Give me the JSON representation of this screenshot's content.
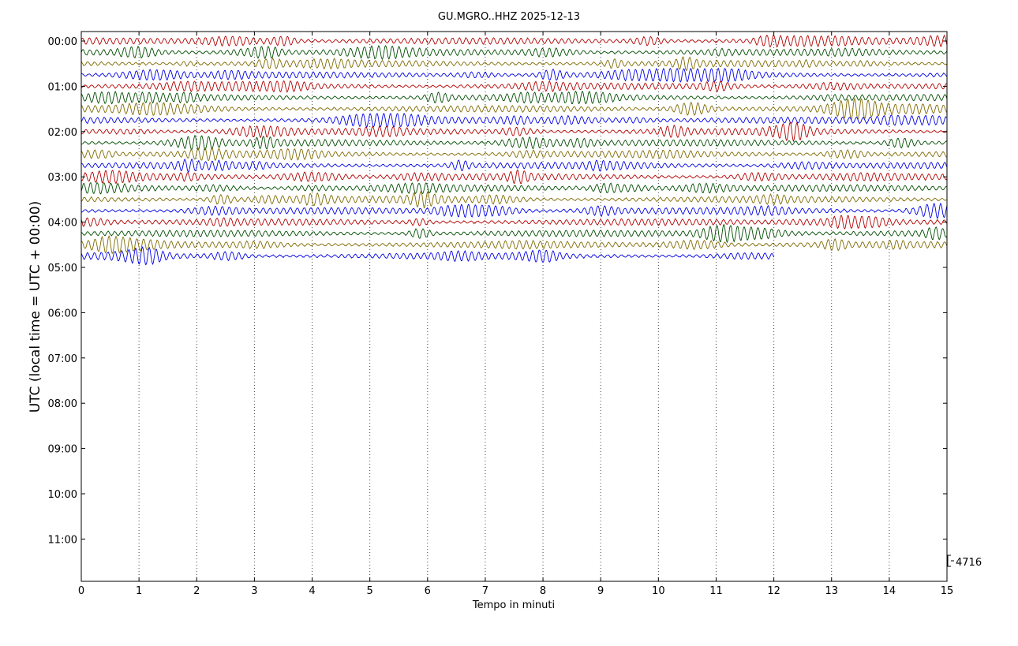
{
  "chart_data": {
    "type": "line",
    "title": "GU.MGRO..HHZ 2025-12-13",
    "xlabel": "Tempo in minuti",
    "ylabel": "UTC (local time = UTC + 00:00)",
    "xlim": [
      0,
      15
    ],
    "x_ticks": [
      0,
      1,
      2,
      3,
      4,
      5,
      6,
      7,
      8,
      9,
      10,
      11,
      12,
      13,
      14,
      15
    ],
    "y_tick_labels": [
      "00:00",
      "01:00",
      "02:00",
      "03:00",
      "04:00",
      "05:00",
      "06:00",
      "07:00",
      "08:00",
      "09:00",
      "10:00",
      "11:00"
    ],
    "grid": "vertical dotted lines at each minute",
    "trace_interval_minutes": 15,
    "trace_colors": [
      "#b30000",
      "#004d00",
      "#7f6a00",
      "#0000e6"
    ],
    "series": [
      {
        "start": "00:00",
        "color": "#b30000",
        "end_minute": 15
      },
      {
        "start": "00:15",
        "color": "#004d00",
        "end_minute": 15
      },
      {
        "start": "00:30",
        "color": "#7f6a00",
        "end_minute": 15
      },
      {
        "start": "00:45",
        "color": "#0000e6",
        "end_minute": 15
      },
      {
        "start": "01:00",
        "color": "#b30000",
        "end_minute": 15
      },
      {
        "start": "01:15",
        "color": "#004d00",
        "end_minute": 15
      },
      {
        "start": "01:30",
        "color": "#7f6a00",
        "end_minute": 15
      },
      {
        "start": "01:45",
        "color": "#0000e6",
        "end_minute": 15
      },
      {
        "start": "02:00",
        "color": "#b30000",
        "end_minute": 15
      },
      {
        "start": "02:15",
        "color": "#004d00",
        "end_minute": 15
      },
      {
        "start": "02:30",
        "color": "#7f6a00",
        "end_minute": 15
      },
      {
        "start": "02:45",
        "color": "#0000e6",
        "end_minute": 15
      },
      {
        "start": "03:00",
        "color": "#b30000",
        "end_minute": 15
      },
      {
        "start": "03:15",
        "color": "#004d00",
        "end_minute": 15
      },
      {
        "start": "03:30",
        "color": "#7f6a00",
        "end_minute": 15
      },
      {
        "start": "03:45",
        "color": "#0000e6",
        "end_minute": 15
      },
      {
        "start": "04:00",
        "color": "#b30000",
        "end_minute": 15
      },
      {
        "start": "04:15",
        "color": "#004d00",
        "end_minute": 15
      },
      {
        "start": "04:30",
        "color": "#7f6a00",
        "end_minute": 15
      },
      {
        "start": "04:45",
        "color": "#0000e6",
        "end_minute": 12
      }
    ],
    "scale_label": "4716"
  }
}
